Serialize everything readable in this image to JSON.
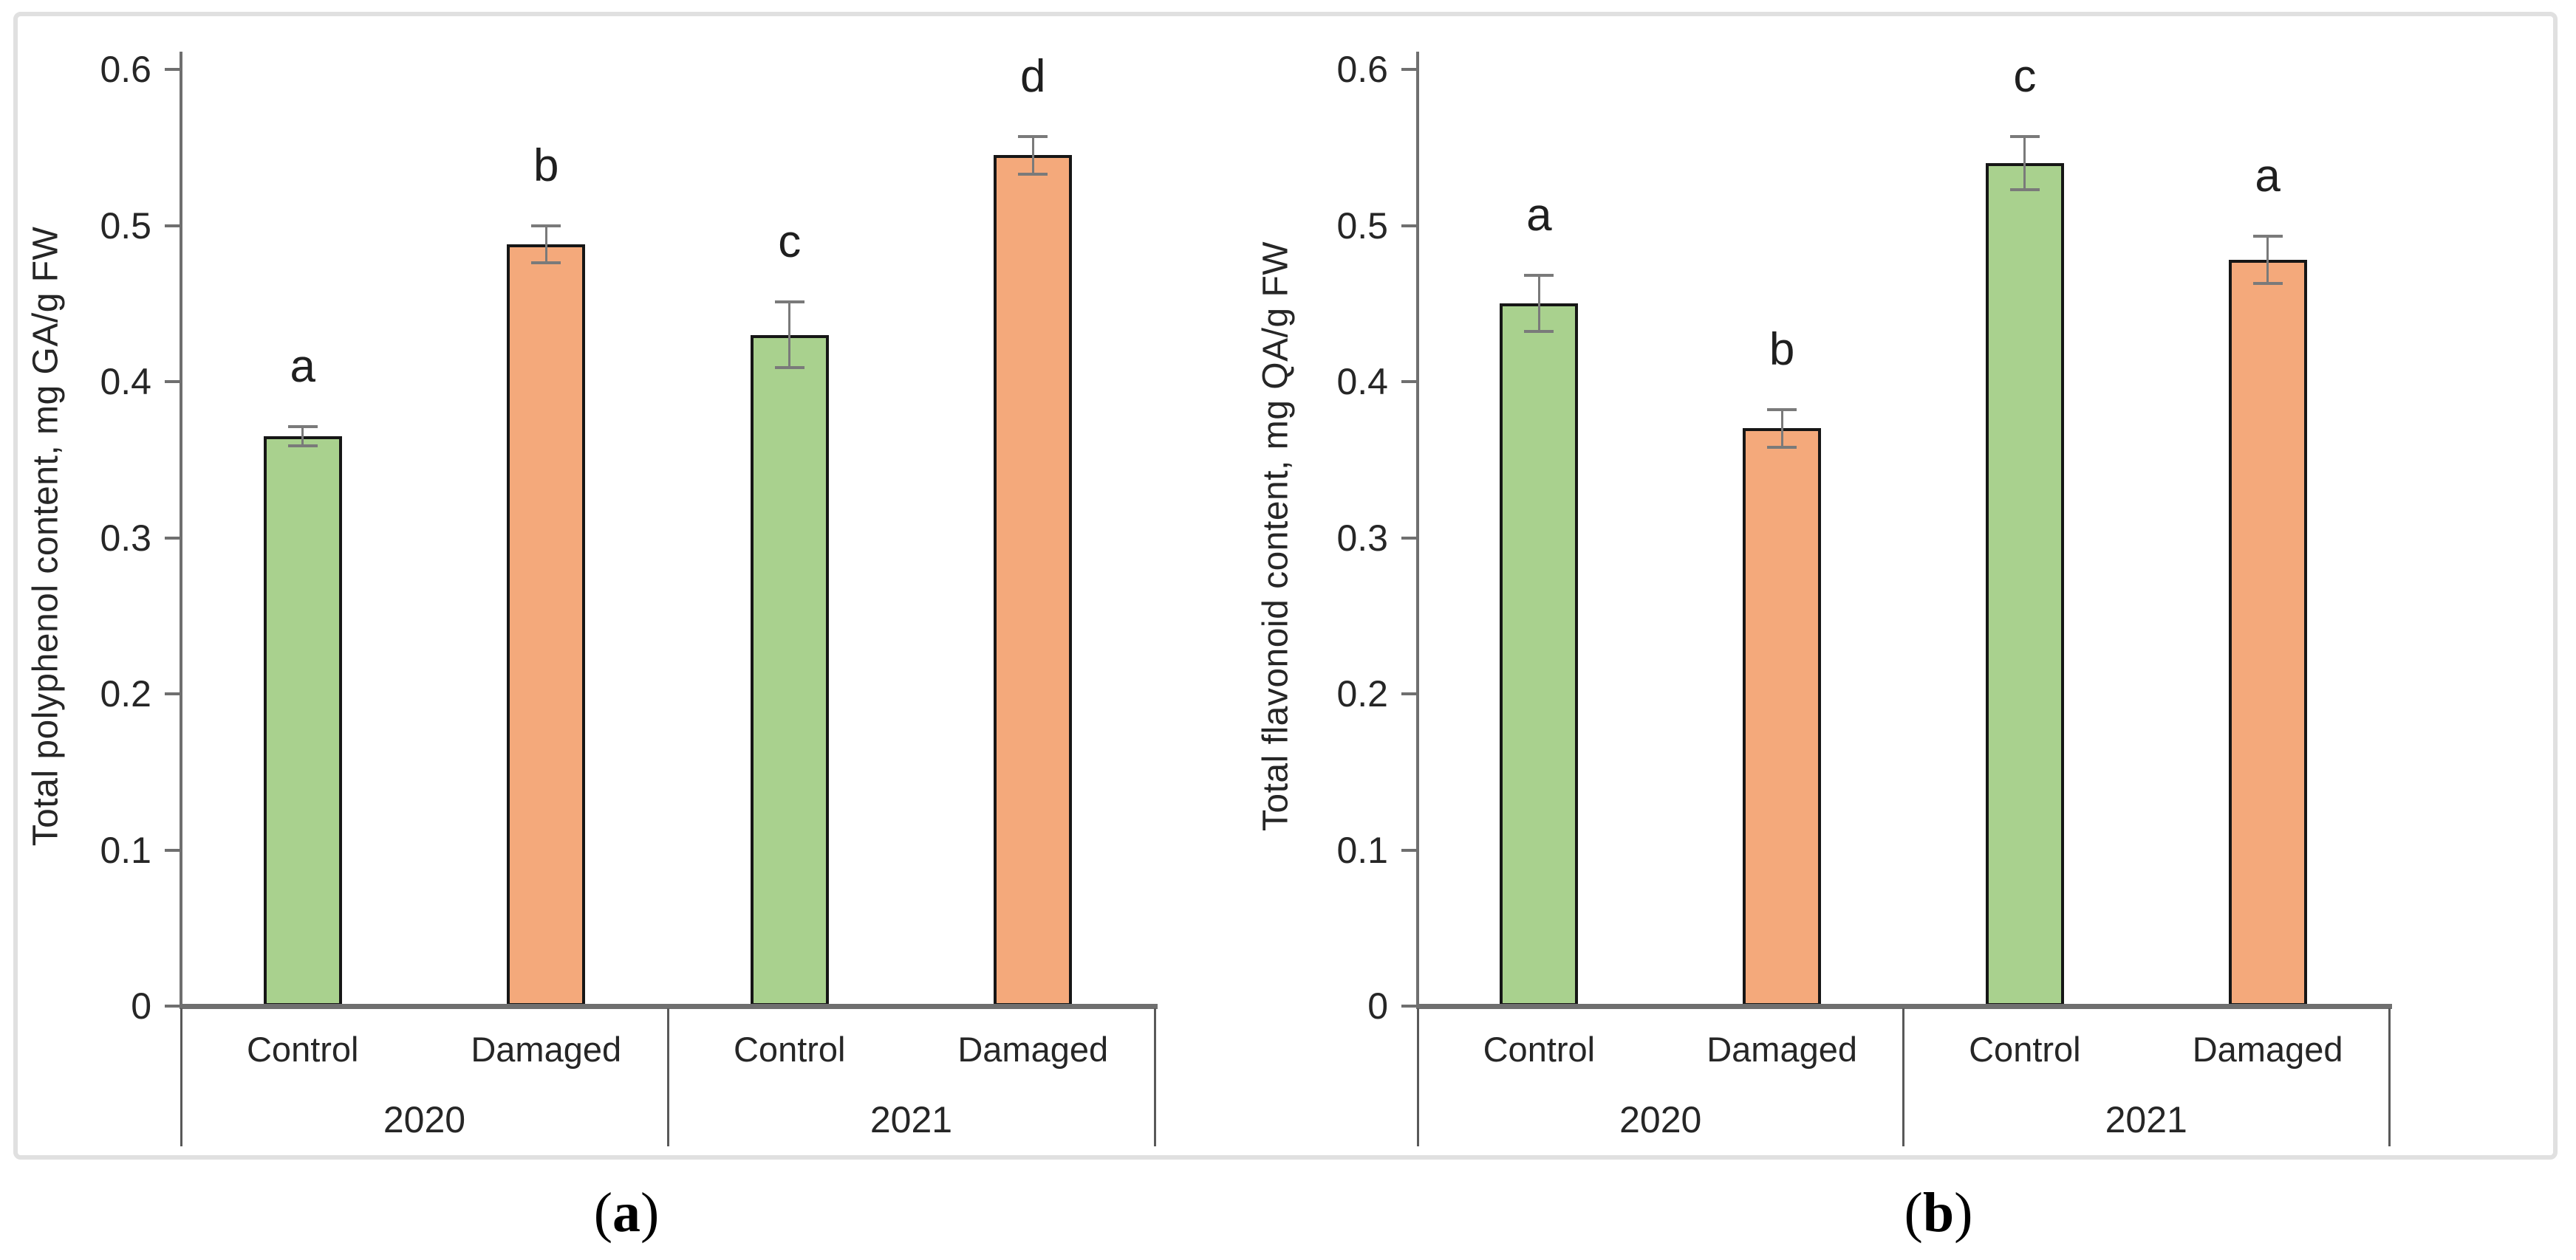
{
  "page": {
    "background": "#ffffff"
  },
  "colors": {
    "green": "#A9D18E",
    "orange": "#F4A97B",
    "bar_border": "#161616",
    "error_bar": "#7a7a7a",
    "axis": "#6f6f6f",
    "frame_line": "#595959",
    "figure_frame": "#e0e0e0",
    "text": "#262626"
  },
  "captions": [
    {
      "prefix": "(",
      "label": "a",
      "suffix": ")"
    },
    {
      "prefix": "(",
      "label": "b",
      "suffix": ")"
    }
  ],
  "chart_data": [
    {
      "type": "bar",
      "panel": "a",
      "ylabel": "Total polyphenol content, mg GA/g FW",
      "ylim": [
        0,
        0.6
      ],
      "yticks": [
        0,
        0.1,
        0.2,
        0.3,
        0.4,
        0.5,
        0.6
      ],
      "ytick_labels": [
        "0",
        "0.1",
        "0.2",
        "0.3",
        "0.4",
        "0.5",
        "0.6"
      ],
      "grid": false,
      "legend": "none",
      "group_labels": [
        "2020",
        "2021"
      ],
      "categories": [
        "Control",
        "Damaged",
        "Control",
        "Damaged"
      ],
      "series": [
        {
          "group": "2020",
          "category": "Control",
          "value": 0.365,
          "error": 0.006,
          "letter": "a",
          "color_key": "green"
        },
        {
          "group": "2020",
          "category": "Damaged",
          "value": 0.488,
          "error": 0.012,
          "letter": "b",
          "color_key": "orange"
        },
        {
          "group": "2021",
          "category": "Control",
          "value": 0.43,
          "error": 0.021,
          "letter": "c",
          "color_key": "green"
        },
        {
          "group": "2021",
          "category": "Damaged",
          "value": 0.545,
          "error": 0.012,
          "letter": "d",
          "color_key": "orange"
        }
      ]
    },
    {
      "type": "bar",
      "panel": "b",
      "ylabel": "Total flavonoid content, mg QA/g FW",
      "ylim": [
        0,
        0.6
      ],
      "yticks": [
        0,
        0.1,
        0.2,
        0.3,
        0.4,
        0.5,
        0.6
      ],
      "ytick_labels": [
        "0",
        "0.1",
        "0.2",
        "0.3",
        "0.4",
        "0.5",
        "0.6"
      ],
      "grid": false,
      "legend": "none",
      "group_labels": [
        "2020",
        "2021"
      ],
      "categories": [
        "Control",
        "Damaged",
        "Control",
        "Damaged"
      ],
      "series": [
        {
          "group": "2020",
          "category": "Control",
          "value": 0.45,
          "error": 0.018,
          "letter": "a",
          "color_key": "green"
        },
        {
          "group": "2020",
          "category": "Damaged",
          "value": 0.37,
          "error": 0.012,
          "letter": "b",
          "color_key": "orange"
        },
        {
          "group": "2021",
          "category": "Control",
          "value": 0.54,
          "error": 0.017,
          "letter": "c",
          "color_key": "green"
        },
        {
          "group": "2021",
          "category": "Damaged",
          "value": 0.478,
          "error": 0.015,
          "letter": "a",
          "color_key": "orange"
        }
      ]
    }
  ]
}
